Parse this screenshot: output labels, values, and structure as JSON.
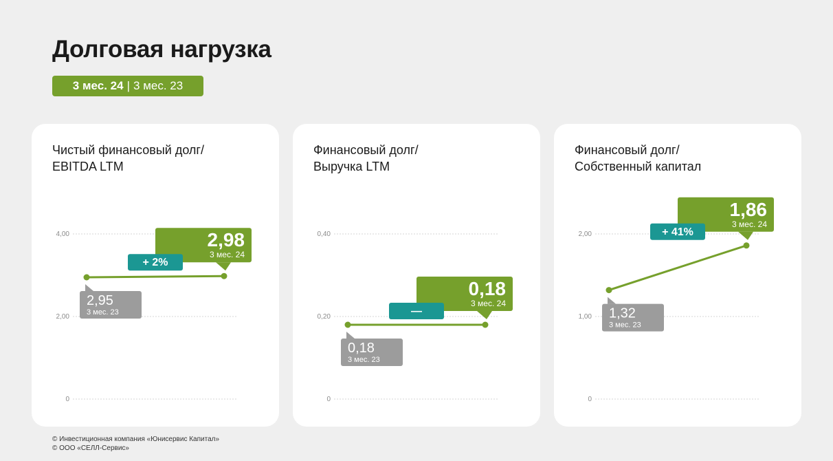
{
  "title": "Долговая нагрузка",
  "period": {
    "current": "3 мес. 24",
    "separator": "|",
    "previous": "3 мес. 23"
  },
  "chart_data": [
    {
      "type": "line",
      "title": "Чистый финансовый долг/\nEBITDA LTM",
      "y_ticks": [
        "0",
        "2,00",
        "4,00"
      ],
      "ylim": [
        0,
        4
      ],
      "x": [
        "3 мес. 23",
        "3 мес. 24"
      ],
      "values": [
        2.95,
        2.98
      ],
      "value_labels": [
        "2,95",
        "2,98"
      ],
      "change_label": "+ 2%",
      "grid": true
    },
    {
      "type": "line",
      "title": "Финансовый долг/\nВыручка LTM",
      "y_ticks": [
        "0",
        "0,20",
        "0,40"
      ],
      "ylim": [
        0,
        0.4
      ],
      "x": [
        "3 мес. 23",
        "3 мес. 24"
      ],
      "values": [
        0.18,
        0.18
      ],
      "value_labels": [
        "0,18",
        "0,18"
      ],
      "change_label": "—",
      "grid": true
    },
    {
      "type": "line",
      "title": "Финансовый долг/\nСобственный капитал",
      "y_ticks": [
        "0",
        "1,00",
        "2,00"
      ],
      "ylim": [
        0,
        2
      ],
      "x": [
        "3 мес. 23",
        "3 мес. 24"
      ],
      "values": [
        1.32,
        1.86
      ],
      "value_labels": [
        "1,32",
        "1,86"
      ],
      "change_label": "+ 41%",
      "grid": true
    }
  ],
  "colors": {
    "line": "#76a02c",
    "current_badge": "#76a02c",
    "previous_badge": "#9c9c9c",
    "change_badge": "#1b9793",
    "grid": "#d6d6d6",
    "tick": "#8a8a8a"
  },
  "footer": [
    "© Инвестиционная компания «Юнисервис Капитал»",
    "© ООО «СЕЛЛ-Сервис»"
  ]
}
